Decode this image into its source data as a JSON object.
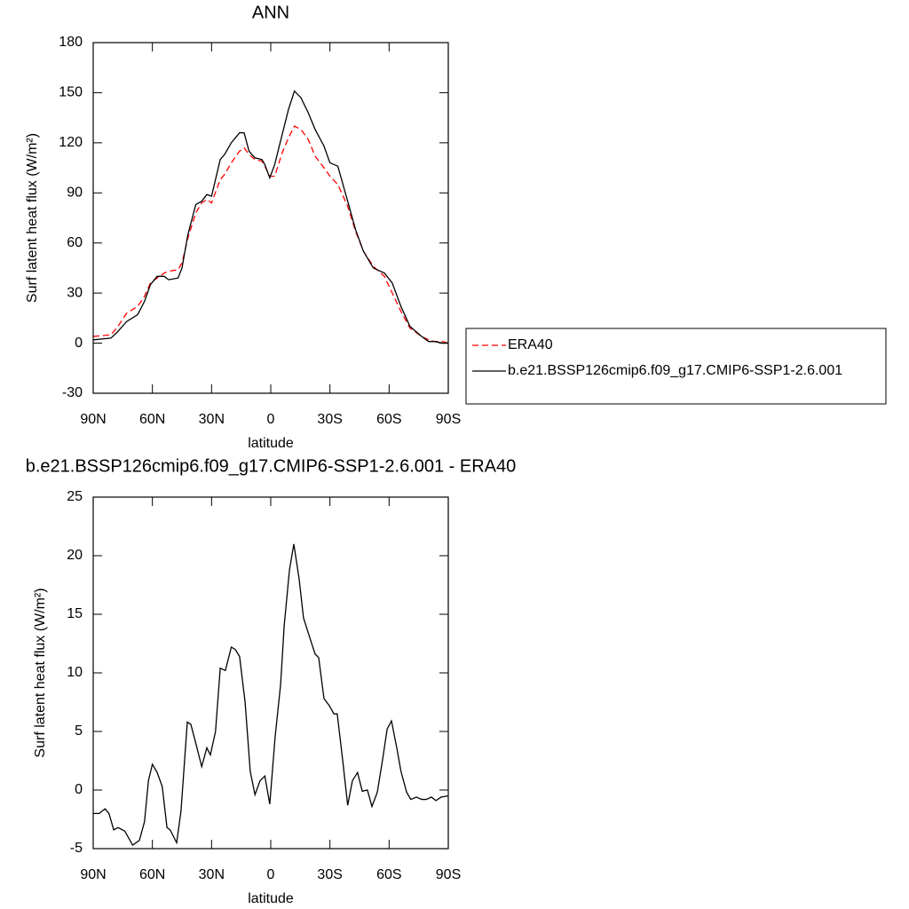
{
  "chart_data": [
    {
      "type": "line",
      "title": "ANN",
      "x_label": "latitude",
      "y_label": "Surf latent heat flux (W/m²)",
      "x": [
        90,
        81,
        77.5,
        73,
        67.5,
        64,
        61,
        57.6,
        54,
        51.8,
        47,
        45,
        42,
        38,
        35,
        32.4,
        30,
        25.6,
        23.4,
        20,
        15.8,
        13.5,
        11,
        8,
        4.5,
        3,
        0.5,
        -2,
        -5.8,
        -9,
        -12,
        -15.3,
        -19,
        -22.5,
        -27,
        -30,
        -34,
        -39,
        -43,
        -47,
        -52,
        -57.6,
        -61.6,
        -66,
        -70.6,
        -76.5,
        -80,
        -83,
        -87,
        -90
      ],
      "series": [
        {
          "name": "ERA40",
          "color": "#ff0000",
          "style": "dashed",
          "values": [
            4,
            5,
            10,
            18,
            22,
            28,
            36,
            39,
            42,
            43,
            44,
            48,
            63,
            78,
            84,
            86,
            84,
            98,
            101,
            108,
            115,
            117,
            113,
            110,
            109,
            106,
            100,
            100,
            114,
            123,
            130,
            128,
            122,
            112,
            105,
            100,
            95,
            82,
            67,
            55,
            46,
            40,
            30,
            19,
            9,
            4,
            2,
            1,
            1,
            0
          ]
        },
        {
          "name": "b.e21.BSSP126cmip6.f09_g17.CMIP6-SSP1-2.6.001",
          "color": "#000000",
          "style": "solid",
          "values": [
            2,
            3,
            7,
            13,
            17,
            25,
            35,
            40,
            40,
            38,
            39,
            45,
            65,
            83,
            85,
            89,
            88,
            110,
            113,
            120,
            126,
            126,
            115,
            111,
            110,
            107,
            99,
            107,
            125,
            140,
            151,
            147,
            138,
            128,
            118,
            108,
            106,
            85,
            68,
            55,
            45,
            42,
            36,
            22,
            10,
            4,
            1,
            1,
            0,
            0
          ]
        }
      ],
      "xlim": [
        90,
        -90
      ],
      "xticks": [
        {
          "value": 90,
          "label": "90N"
        },
        {
          "value": 60,
          "label": "60N"
        },
        {
          "value": 30,
          "label": "30N"
        },
        0,
        {
          "value": -30,
          "label": "30S"
        },
        {
          "value": -60,
          "label": "60S"
        },
        {
          "value": -90,
          "label": "90S"
        }
      ],
      "ylim": [
        -30,
        180
      ],
      "yticks": [
        -30,
        0,
        30,
        60,
        90,
        120,
        150,
        180
      ],
      "legend": "right"
    },
    {
      "type": "line",
      "title": "b.e21.BSSP126cmip6.f09_g17.CMIP6-SSP1-2.6.001 - ERA40",
      "x_label": "latitude",
      "y_label": "Surf latent heat flux (W/m²)",
      "x": [
        90,
        87,
        84,
        82,
        79.6,
        77.4,
        74,
        70,
        66.6,
        64,
        62,
        60,
        57.6,
        55,
        52.6,
        51,
        47.7,
        45.5,
        42.3,
        40.5,
        38,
        35,
        32.4,
        30.6,
        28,
        25.6,
        23,
        20,
        18,
        15.8,
        13,
        10.4,
        8,
        5.4,
        3,
        0.5,
        -2.2,
        -5,
        -6.8,
        -9.5,
        -11.7,
        -14.4,
        -16.6,
        -19.8,
        -22.5,
        -24.3,
        -27,
        -29.7,
        -32,
        -33.7,
        -36.5,
        -39,
        -41.4,
        -44,
        -46.4,
        -49,
        -51.3,
        -54,
        -56.7,
        -59,
        -61.2,
        -64,
        -66,
        -68.9,
        -71,
        -73.8,
        -76.5,
        -78.8,
        -81.5,
        -83.7,
        -86.4,
        -90
      ],
      "values": [
        -2,
        -2,
        -1.6,
        -2,
        -3.4,
        -3.2,
        -3.5,
        -4.7,
        -4.3,
        -2.7,
        0.8,
        2.2,
        1.5,
        0.3,
        -3.2,
        -3.4,
        -4.5,
        -1.8,
        5.8,
        5.6,
        4,
        2,
        3.6,
        3,
        5,
        10.4,
        10.2,
        12.2,
        12,
        11.4,
        7.5,
        1.6,
        -0.4,
        0.8,
        1.2,
        -1.2,
        4.5,
        9,
        14,
        18.8,
        21,
        18,
        14.7,
        13,
        11.6,
        11.3,
        7.8,
        7.2,
        6.5,
        6.5,
        2.5,
        -1.3,
        0.8,
        1.5,
        -0.1,
        0,
        -1.4,
        -0.2,
        2.6,
        5.2,
        5.9,
        3.5,
        1.6,
        -0.2,
        -0.8,
        -0.6,
        -0.8,
        -0.8,
        -0.6,
        -0.9,
        -0.6,
        -0.5
      ],
      "color": "#000000",
      "xlim": [
        90,
        -90
      ],
      "xticks": [
        {
          "value": 90,
          "label": "90N"
        },
        {
          "value": 60,
          "label": "60N"
        },
        {
          "value": 30,
          "label": "30N"
        },
        0,
        {
          "value": -30,
          "label": "30S"
        },
        {
          "value": -60,
          "label": "60S"
        },
        {
          "value": -90,
          "label": "90S"
        }
      ],
      "ylim": [
        -5,
        25
      ],
      "yticks": [
        -5,
        0,
        5,
        10,
        15,
        20,
        25
      ]
    }
  ]
}
